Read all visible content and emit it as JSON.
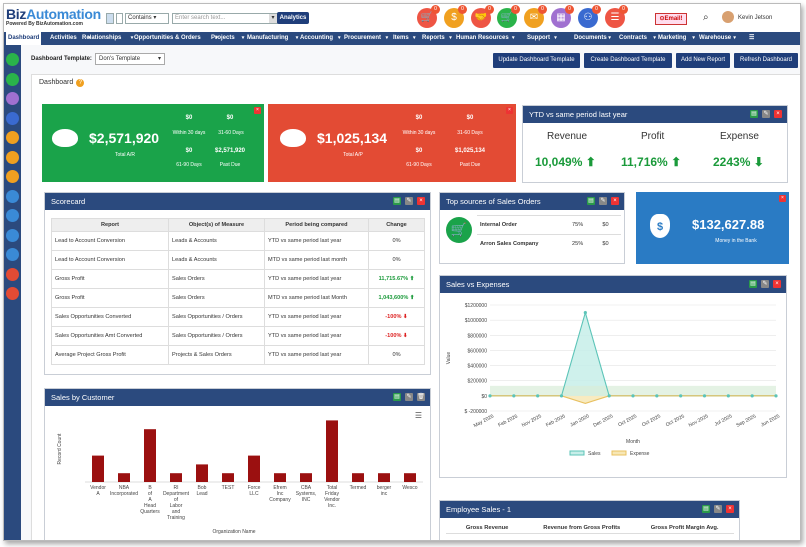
{
  "logo": {
    "name_a": "Biz",
    "name_b": "Automation",
    "tagline": "Powered By BizAutomation.com"
  },
  "search": {
    "filter": "Contains",
    "placeholder": "Enter search text...",
    "button": "Analytics"
  },
  "top_icons": [
    {
      "name": "cart-icon",
      "color": "#e54",
      "badge": "0",
      "glyph": "🛒"
    },
    {
      "name": "dollar-icon",
      "color": "#f0a020",
      "badge": "0",
      "glyph": "$"
    },
    {
      "name": "handshake-icon",
      "color": "#e54",
      "badge": "0",
      "glyph": "🤝"
    },
    {
      "name": "cart-green-icon",
      "color": "#2ab34a",
      "badge": "0",
      "glyph": "🛒"
    },
    {
      "name": "mail-icon",
      "color": "#f0a020",
      "badge": "0",
      "glyph": "✉"
    },
    {
      "name": "calendar-icon",
      "color": "#a070d0",
      "badge": "0",
      "glyph": "▦"
    },
    {
      "name": "org-icon",
      "color": "#3a6ad0",
      "badge": "0",
      "glyph": "⚇"
    },
    {
      "name": "list-icon",
      "color": "#e54",
      "badge": "0",
      "glyph": "☰"
    }
  ],
  "email_label": "Email!",
  "user_name": "Kevin Jetson",
  "nav": [
    "Dashboard",
    "Activities",
    "Relationships",
    "Opportunities & Orders",
    "Projects",
    "Manufacturing",
    "Accounting",
    "Procurement",
    "Items",
    "Reports",
    "Human Resources",
    "Support",
    "Documents",
    "Contracts",
    "Marketing",
    "Warehouse"
  ],
  "template": {
    "label": "Dashboard Template:",
    "value": "Don's Template"
  },
  "actions": [
    "Update Dashboard Template",
    "Create Dashboard Template",
    "Add New Report",
    "Refresh Dashboard"
  ],
  "dashboard_title": "Dashboard",
  "ar": {
    "total": "$2,571,920",
    "total_label": "Total A/R",
    "v1": "$0",
    "l1": "Within 30 days",
    "v2": "$0",
    "l2": "31-60 Days",
    "v3": "$0",
    "l3": "61-90 Days",
    "v4": "$2,571,920",
    "l4": "Past Due"
  },
  "ap": {
    "total": "$1,025,134",
    "total_label": "Total A/P",
    "v1": "$0",
    "l1": "Within 30 days",
    "v2": "$0",
    "l2": "31-60 Days",
    "v3": "$0",
    "l3": "61-90 Days",
    "v4": "$1,025,134",
    "l4": "Past Due"
  },
  "ytd": {
    "title": "YTD vs same period last year",
    "labels": [
      "Revenue",
      "Profit",
      "Expense"
    ],
    "values": [
      "10,049%",
      "11,716%",
      "2243%"
    ]
  },
  "scorecard": {
    "title": "Scorecard",
    "headers": [
      "Report",
      "Object(s) of Measure",
      "Period being compared",
      "Change"
    ],
    "rows": [
      [
        "Lead to Account Conversion",
        "Leads & Accounts",
        "YTD vs same period last year",
        "0%",
        ""
      ],
      [
        "Lead to Account Conversion",
        "Leads & Accounts",
        "MTD vs same period last month",
        "0%",
        ""
      ],
      [
        "Gross Profit",
        "Sales Orders",
        "YTD vs same period last year",
        "11,715.67%",
        "up"
      ],
      [
        "Gross Profit",
        "Sales Orders",
        "MTD vs same period last Month",
        "1,043,600%",
        "up"
      ],
      [
        "Sales Opportunities Converted",
        "Sales Opportunities / Orders",
        "YTD vs same period last year",
        "-100%",
        "down"
      ],
      [
        "Sales Opportunities Amt Converted",
        "Sales Opportunities / Orders",
        "YTD vs same period last year",
        "-100%",
        "down"
      ],
      [
        "Average Project Gross Profit",
        "Projects & Sales Orders",
        "YTD vs same period last year",
        "0%",
        ""
      ]
    ]
  },
  "top_sources": {
    "title": "Top sources of Sales Orders",
    "rows": [
      [
        "Internal Order",
        "75%",
        "$0"
      ],
      [
        "Arron Sales Company",
        "25%",
        "$0"
      ]
    ]
  },
  "bank": {
    "value": "$132,627.88",
    "label": "Money in the Bank"
  },
  "sales_exp": {
    "title": "Sales vs Expenses",
    "ylabel": "Value",
    "xlabel": "Month",
    "legend": [
      "Sales",
      "Expense"
    ]
  },
  "sales_cust": {
    "title": "Sales by Customer",
    "ylabel": "Record Count",
    "xlabel": "Organization Name"
  },
  "emp_sales": {
    "title": "Employee Sales - 1",
    "headers": [
      "Gross Revenue",
      "Revenue from Gross Profits",
      "Gross Profit Margin Avg."
    ]
  },
  "chart_data": [
    {
      "type": "area",
      "title": "Sales vs Expenses",
      "xlabel": "Month",
      "ylabel": "Value",
      "categories": [
        "May 2026",
        "Feb 2026",
        "Nov 2025",
        "Feb 2026",
        "Jan 2020",
        "Dec 2025",
        "Oct 2025",
        "Oct 2025",
        "Oct 2025",
        "Nov 2025",
        "Jul 2025",
        "Sep 2025",
        "Jun 2025"
      ],
      "ylim": [
        -200000,
        1200000
      ],
      "yticks": [
        "$1200000",
        "$1000000",
        "$800000",
        "$600000",
        "$400000",
        "$200000",
        "$0",
        "$ -200000"
      ],
      "series": [
        {
          "name": "Sales",
          "values": [
            0,
            0,
            0,
            0,
            1100000,
            0,
            0,
            0,
            0,
            0,
            0,
            0,
            0
          ]
        },
        {
          "name": "Expense",
          "values": [
            0,
            0,
            0,
            0,
            -100000,
            0,
            0,
            0,
            0,
            0,
            0,
            0,
            0
          ]
        }
      ]
    },
    {
      "type": "bar",
      "title": "Sales by Customer",
      "xlabel": "Organization Name",
      "ylabel": "Record Count",
      "categories": [
        "Vendor A",
        "NBA Incorporated",
        "B of A Head Quarters",
        "RI Department of Labor and Training",
        "Bob Lead",
        "TEST",
        "Force LLC",
        "Efrem Inc Company",
        "CBA Systems, INC",
        "Total Friday Vendor Inc.",
        "Termed",
        "berger inc",
        "Wesco"
      ],
      "values": [
        3,
        1,
        6,
        1,
        2,
        1,
        3,
        1,
        1,
        7,
        1,
        1,
        1
      ],
      "ylim": [
        0,
        7.5
      ]
    }
  ]
}
